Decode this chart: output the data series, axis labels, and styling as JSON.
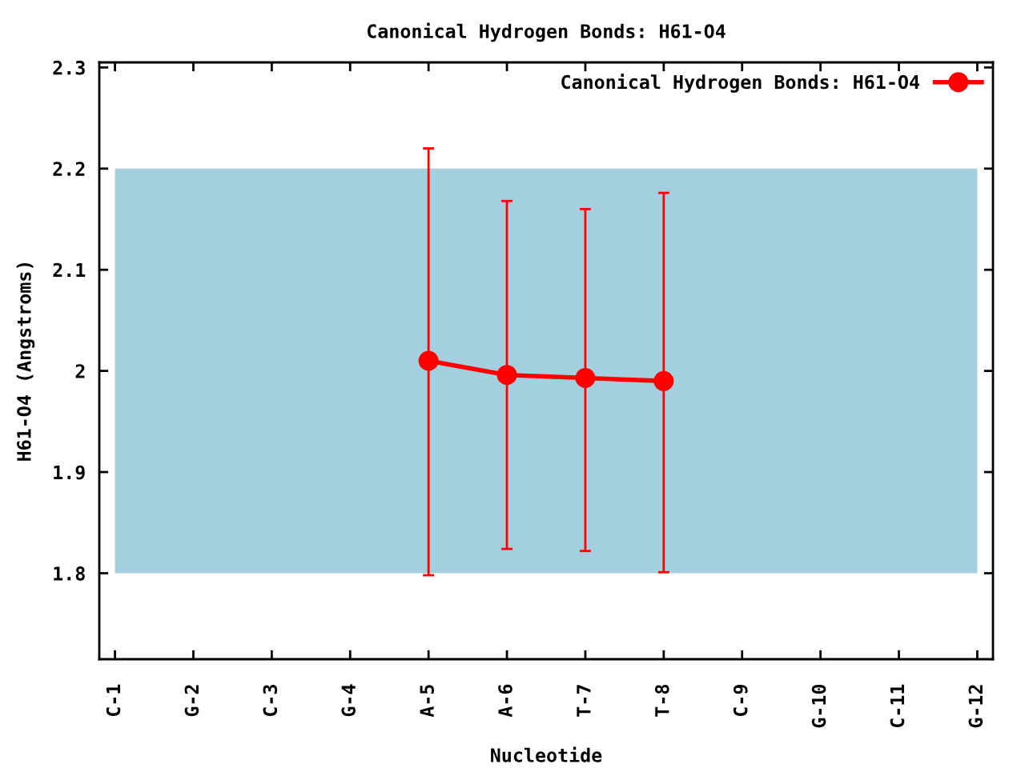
{
  "chart_data": {
    "type": "line",
    "title": "Canonical Hydrogen Bonds: H61-O4",
    "xlabel": "Nucleotide",
    "ylabel": "H61-O4 (Angstroms)",
    "categories": [
      "C-1",
      "G-2",
      "C-3",
      "G-4",
      "A-5",
      "A-6",
      "T-7",
      "T-8",
      "C-9",
      "G-10",
      "C-11",
      "G-12"
    ],
    "series": [
      {
        "name": "Canonical Hydrogen Bonds: H61-O4",
        "marker": "circle",
        "line_style": "solid",
        "color": "#ff0000",
        "values": [
          null,
          null,
          null,
          null,
          2.01,
          1.996,
          1.993,
          1.99,
          null,
          null,
          null,
          null
        ],
        "errors": [
          null,
          null,
          null,
          null,
          [
            1.798,
            2.22
          ],
          [
            1.824,
            2.168
          ],
          [
            1.822,
            2.16
          ],
          [
            1.801,
            2.176
          ],
          null,
          null,
          null,
          null
        ]
      }
    ],
    "ylim": [
      1.715,
      2.305
    ],
    "yticks": [
      1.8,
      1.9,
      2,
      2.1,
      2.2,
      2.3
    ],
    "bands": [
      {
        "axis": "y",
        "from": 1.8,
        "to": 2.2,
        "color": "#a3cfdf"
      }
    ],
    "legend": "top right"
  }
}
